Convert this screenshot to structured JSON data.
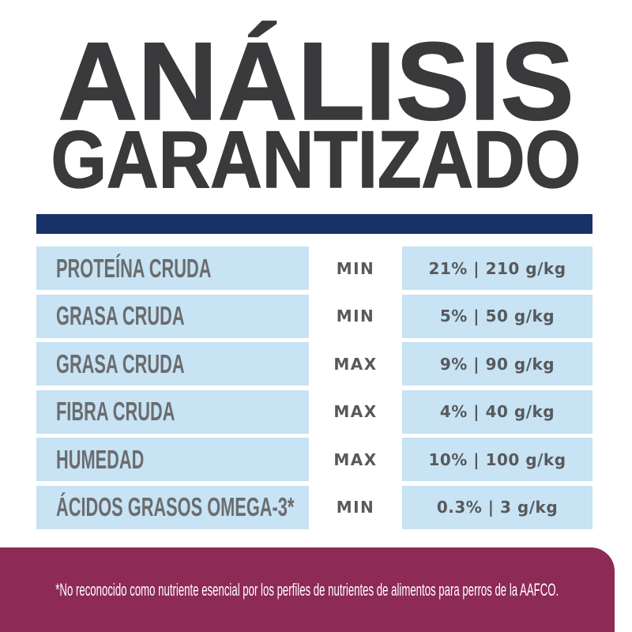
{
  "header": {
    "title_line1": "ANÁLISIS",
    "title_line2": "GARANTIZADO"
  },
  "table": {
    "rows": [
      {
        "label": "PROTEÍNA CRUDA",
        "qualifier": "MIN",
        "value": "21% | 210 g/kg"
      },
      {
        "label": "GRASA CRUDA",
        "qualifier": "MIN",
        "value": "5% | 50 g/kg"
      },
      {
        "label": "GRASA CRUDA",
        "qualifier": "MAX",
        "value": "9% | 90 g/kg"
      },
      {
        "label": "FIBRA CRUDA",
        "qualifier": "MAX",
        "value": "4% | 40 g/kg"
      },
      {
        "label": "HUMEDAD",
        "qualifier": "MAX",
        "value": "10% | 100 g/kg"
      },
      {
        "label": "ÁCIDOS GRASOS OMEGA-3*",
        "qualifier": "MIN",
        "value": "0.3% | 3 g/kg"
      }
    ]
  },
  "footnote": {
    "text": "*No reconocido como nutriente esencial por los perfiles de nutrientes de alimentos para perros de la AAFCO."
  },
  "colors": {
    "title": "#3a393b",
    "navy": "#183168",
    "light_blue": "#c7e3f4",
    "label_gray": "#6b6c6e",
    "value_gray": "#58595b",
    "maroon": "#8d2a56",
    "footnote_text": "#ffffff"
  }
}
